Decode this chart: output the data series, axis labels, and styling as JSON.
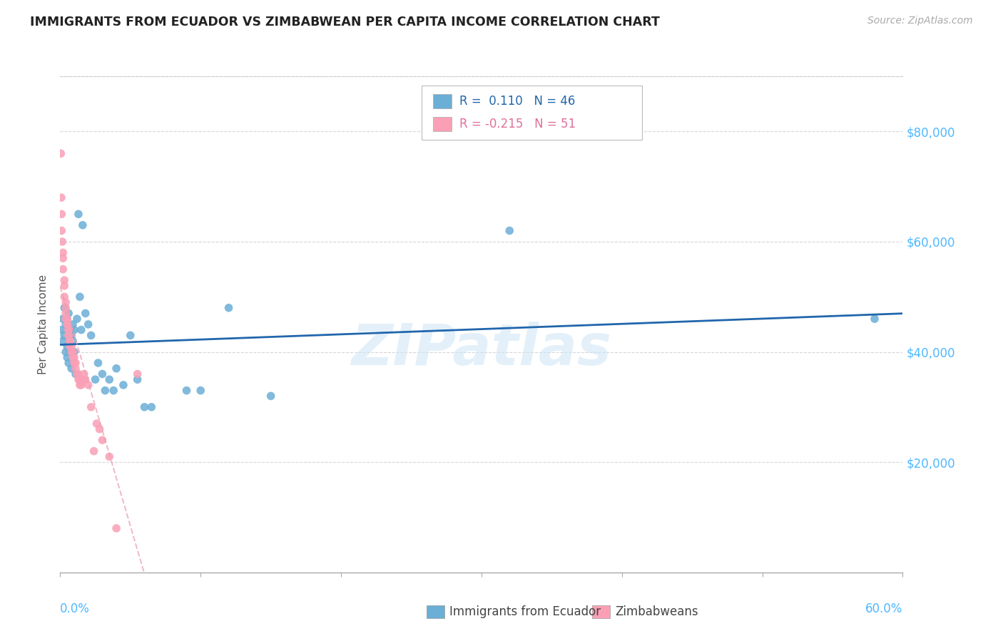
{
  "title": "IMMIGRANTS FROM ECUADOR VS ZIMBABWEAN PER CAPITA INCOME CORRELATION CHART",
  "source": "Source: ZipAtlas.com",
  "ylabel": "Per Capita Income",
  "yticks": [
    0,
    20000,
    40000,
    60000,
    80000
  ],
  "ytick_labels": [
    "",
    "$20,000",
    "$40,000",
    "$60,000",
    "$80,000"
  ],
  "watermark": "ZIPatlas",
  "color_blue": "#6baed6",
  "color_pink": "#fa9fb5",
  "color_blue_line": "#2166ac",
  "color_pink_line": "#e8a0b0",
  "color_axis_labels": "#4db8ff",
  "ecuador_x": [
    0.001,
    0.002,
    0.002,
    0.003,
    0.003,
    0.004,
    0.004,
    0.005,
    0.005,
    0.006,
    0.006,
    0.007,
    0.007,
    0.008,
    0.008,
    0.009,
    0.009,
    0.01,
    0.01,
    0.011,
    0.012,
    0.013,
    0.014,
    0.015,
    0.016,
    0.018,
    0.02,
    0.022,
    0.025,
    0.027,
    0.03,
    0.032,
    0.035,
    0.038,
    0.04,
    0.045,
    0.05,
    0.055,
    0.06,
    0.065,
    0.09,
    0.1,
    0.12,
    0.15,
    0.32,
    0.58
  ],
  "ecuador_y": [
    44000,
    46000,
    42000,
    48000,
    43000,
    40000,
    45000,
    41000,
    39000,
    47000,
    38000,
    44000,
    40000,
    43000,
    37000,
    42000,
    45000,
    44000,
    40000,
    36000,
    46000,
    65000,
    50000,
    44000,
    63000,
    47000,
    45000,
    43000,
    35000,
    38000,
    36000,
    33000,
    35000,
    33000,
    37000,
    34000,
    43000,
    35000,
    30000,
    30000,
    33000,
    33000,
    48000,
    32000,
    62000,
    46000
  ],
  "zimbabwe_x": [
    0.0005,
    0.0008,
    0.001,
    0.001,
    0.0015,
    0.002,
    0.002,
    0.002,
    0.003,
    0.003,
    0.003,
    0.004,
    0.004,
    0.004,
    0.004,
    0.005,
    0.005,
    0.005,
    0.006,
    0.006,
    0.006,
    0.006,
    0.007,
    0.007,
    0.007,
    0.008,
    0.008,
    0.009,
    0.009,
    0.01,
    0.01,
    0.011,
    0.011,
    0.012,
    0.013,
    0.013,
    0.014,
    0.014,
    0.015,
    0.016,
    0.017,
    0.018,
    0.02,
    0.022,
    0.024,
    0.026,
    0.028,
    0.03,
    0.035,
    0.04,
    0.055
  ],
  "zimbabwe_y": [
    76000,
    68000,
    65000,
    62000,
    60000,
    58000,
    57000,
    55000,
    53000,
    52000,
    50000,
    49000,
    48000,
    47000,
    46000,
    46000,
    45000,
    45000,
    44000,
    44000,
    43000,
    43000,
    42000,
    42000,
    41000,
    41000,
    40000,
    40000,
    39000,
    39000,
    38000,
    38000,
    37000,
    36000,
    36000,
    35000,
    35000,
    34000,
    34000,
    35000,
    36000,
    35000,
    34000,
    30000,
    22000,
    27000,
    26000,
    24000,
    21000,
    8000,
    36000
  ]
}
